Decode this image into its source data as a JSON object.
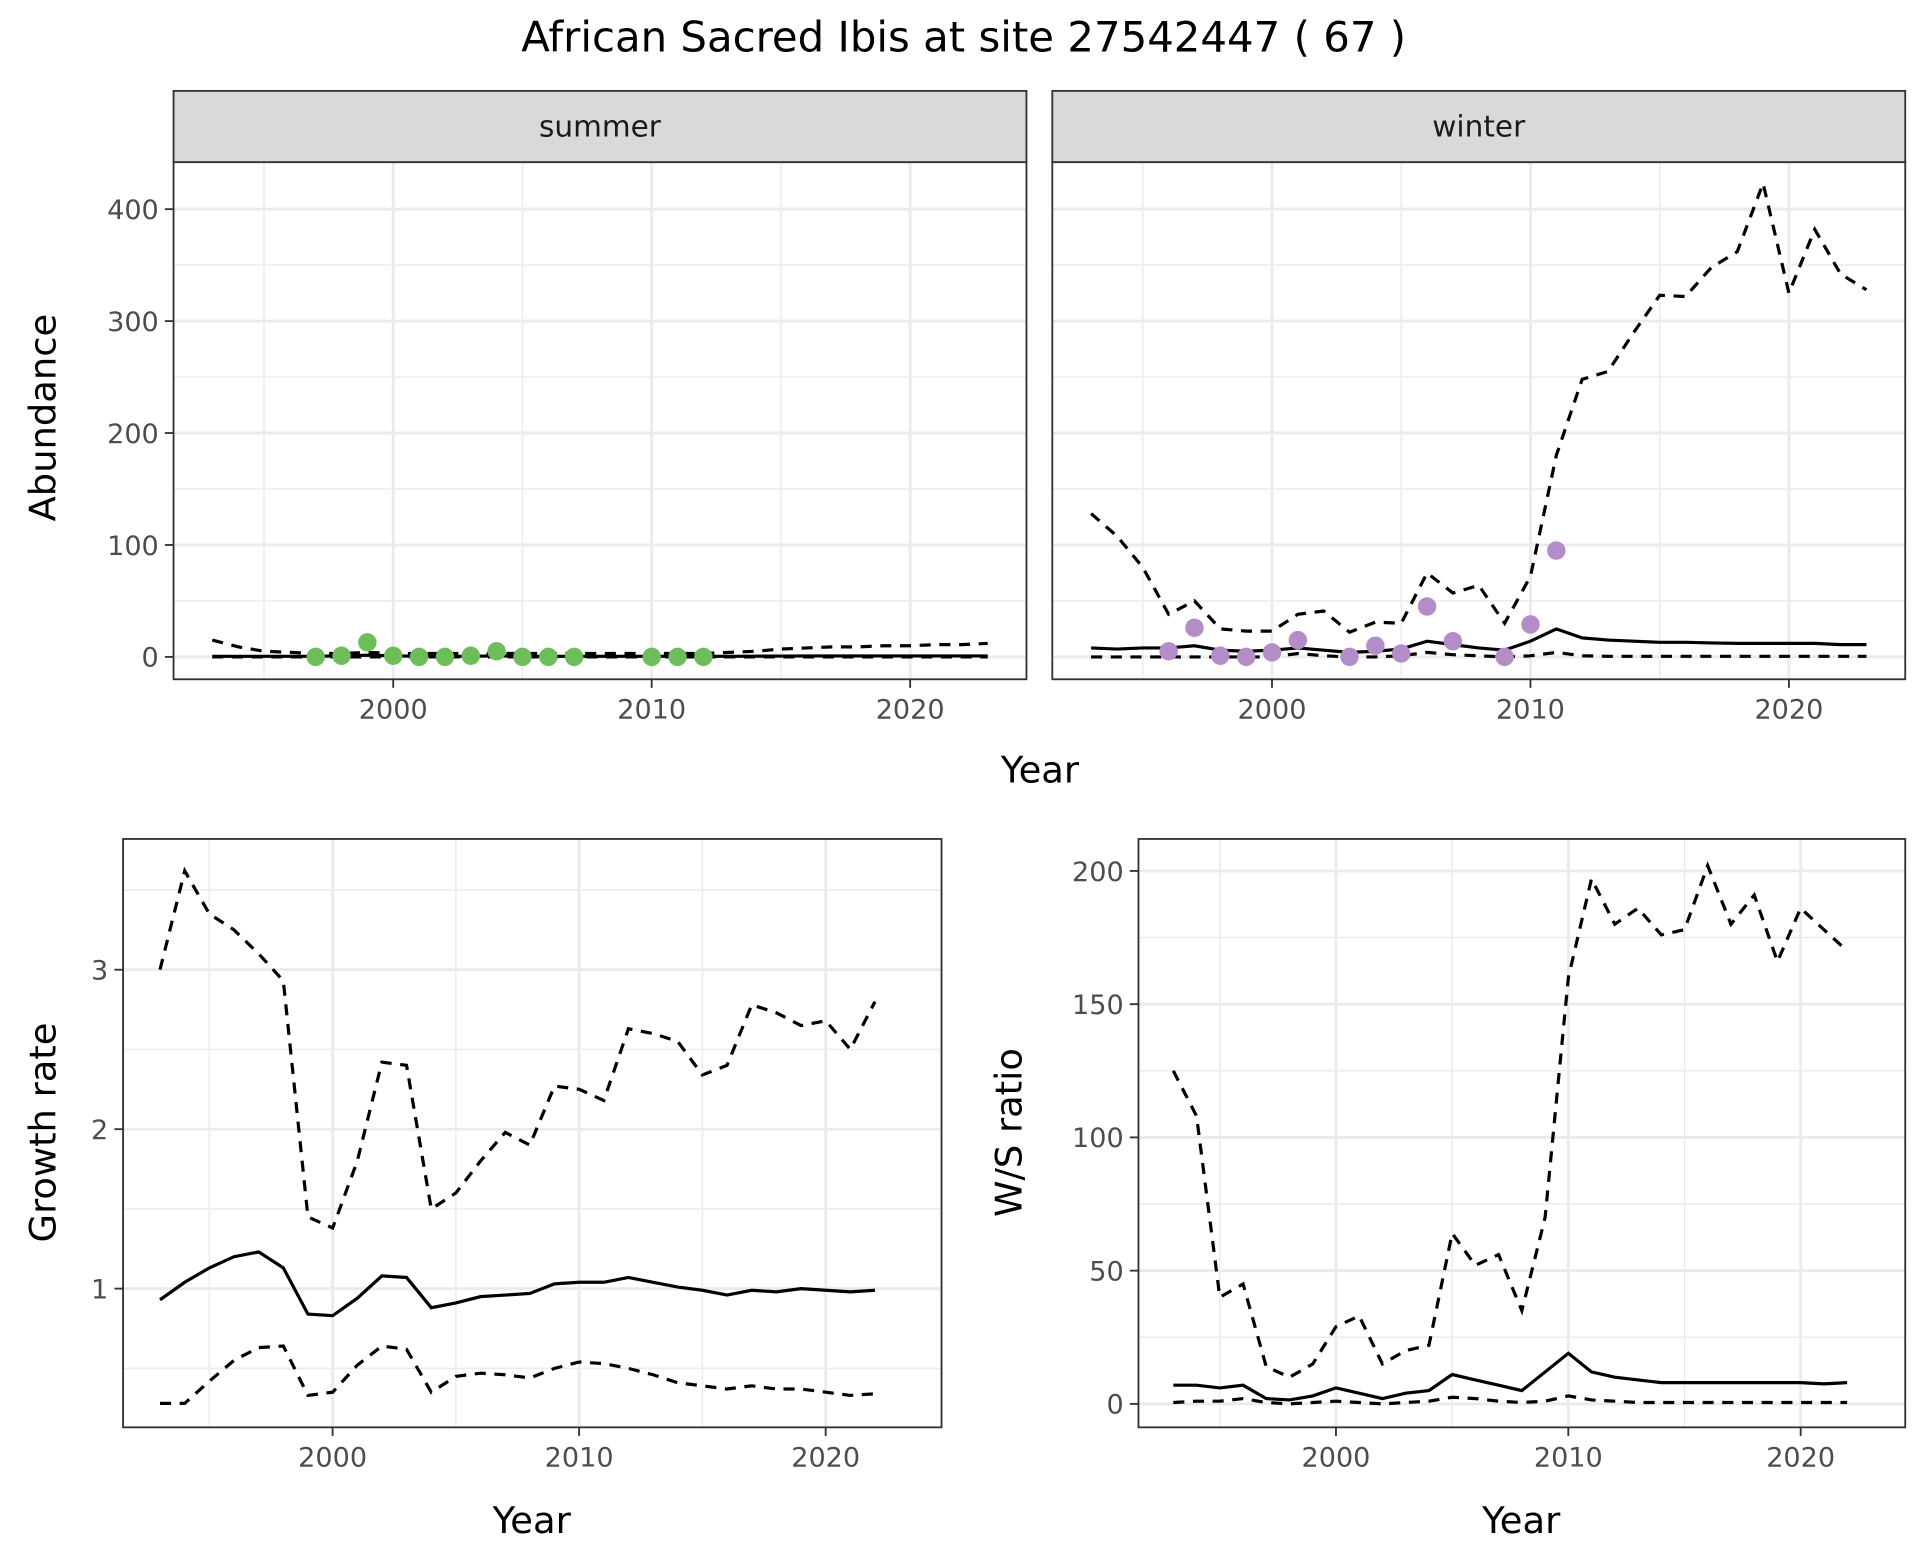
{
  "title": "African Sacred Ibis at site 27542447 ( 67 )",
  "colors": {
    "summer_points": "#6dbd5a",
    "winter_points": "#b48cc8",
    "lines": "#000000",
    "strip_bg": "#d9d9d9",
    "grid": "#ebebeb"
  },
  "chart_data": [
    {
      "type": "line",
      "id": "summer",
      "strip": "summer",
      "xlabel": "Year",
      "ylabel": "Abundance",
      "xlim": [
        1991.5,
        2024.5
      ],
      "ylim": [
        -20,
        442
      ],
      "xticks": [
        2000,
        2010,
        2020
      ],
      "yticks": [
        0,
        100,
        200,
        300,
        400
      ],
      "x": [
        1993,
        1994,
        1995,
        1996,
        1997,
        1998,
        1999,
        2000,
        2001,
        2002,
        2003,
        2004,
        2005,
        2006,
        2007,
        2008,
        2009,
        2010,
        2011,
        2012,
        2013,
        2014,
        2015,
        2016,
        2017,
        2018,
        2019,
        2020,
        2021,
        2022,
        2023
      ],
      "series": [
        {
          "name": "mean",
          "style": "solid",
          "values": [
            0.5,
            0.5,
            0.5,
            0.5,
            0.5,
            1,
            1.5,
            1,
            0.5,
            0.5,
            0.5,
            1,
            0.5,
            0.5,
            0.5,
            0.5,
            0.5,
            0.5,
            0.5,
            0.5,
            0.5,
            0.6,
            0.7,
            0.8,
            0.8,
            0.8,
            0.8,
            0.8,
            0.8,
            0.8,
            0.8
          ]
        },
        {
          "name": "upper",
          "style": "dashed",
          "values": [
            15,
            9,
            5,
            4,
            3,
            3,
            4,
            3,
            3,
            3,
            3,
            3,
            3,
            3,
            3,
            3,
            3,
            3,
            3,
            3,
            4,
            5,
            7,
            8,
            9,
            9,
            10,
            10,
            11,
            11,
            12
          ]
        },
        {
          "name": "lower",
          "style": "dashed",
          "values": [
            0,
            0,
            0,
            0,
            0,
            0,
            0,
            0,
            0,
            0,
            0,
            0,
            0,
            0,
            0,
            0,
            0,
            0,
            0,
            0,
            0,
            0,
            0,
            0,
            0,
            0,
            0,
            0,
            0,
            0,
            0
          ]
        }
      ],
      "points": {
        "x": [
          1997,
          1998,
          1999,
          2000,
          2001,
          2002,
          2003,
          2004,
          2005,
          2006,
          2007,
          2010,
          2011,
          2012
        ],
        "y": [
          0,
          1,
          13,
          1,
          0,
          0,
          1,
          5,
          0,
          0,
          0,
          0,
          0,
          0
        ]
      }
    },
    {
      "type": "line",
      "id": "winter",
      "strip": "winter",
      "xlabel": "Year",
      "ylabel": "Abundance",
      "xlim": [
        1991.5,
        2024.5
      ],
      "ylim": [
        -20,
        442
      ],
      "xticks": [
        2000,
        2010,
        2020
      ],
      "yticks": [
        0,
        100,
        200,
        300,
        400
      ],
      "x": [
        1993,
        1994,
        1995,
        1996,
        1997,
        1998,
        1999,
        2000,
        2001,
        2002,
        2003,
        2004,
        2005,
        2006,
        2007,
        2008,
        2009,
        2010,
        2011,
        2012,
        2013,
        2014,
        2015,
        2016,
        2017,
        2018,
        2019,
        2020,
        2021,
        2022,
        2023
      ],
      "series": [
        {
          "name": "mean",
          "style": "solid",
          "values": [
            8,
            7,
            8,
            8,
            10,
            6,
            5,
            6,
            8,
            6,
            4,
            5,
            7,
            14,
            11,
            8,
            6,
            14,
            25,
            17,
            15,
            14,
            13,
            13,
            12.5,
            12,
            12,
            12,
            12,
            11,
            11
          ]
        },
        {
          "name": "upper",
          "style": "dashed",
          "values": [
            128,
            108,
            80,
            38,
            50,
            25,
            23,
            23,
            38,
            41,
            22,
            31,
            30,
            75,
            57,
            64,
            30,
            72,
            180,
            248,
            255,
            290,
            323,
            322,
            348,
            362,
            423,
            325,
            382,
            342,
            328
          ]
        },
        {
          "name": "lower",
          "style": "dashed",
          "values": [
            0,
            0,
            0,
            0,
            0,
            0,
            0,
            0,
            3,
            1,
            0,
            0,
            1,
            4,
            2,
            1,
            0,
            1,
            4,
            1,
            0.5,
            0.5,
            0.5,
            0.5,
            0.5,
            0.5,
            0.5,
            0.5,
            0.5,
            0.5,
            0.5
          ]
        }
      ],
      "points": {
        "x": [
          1996,
          1997,
          1998,
          1999,
          2000,
          2001,
          2003,
          2004,
          2005,
          2006,
          2007,
          2009,
          2010,
          2011
        ],
        "y": [
          5,
          26,
          1,
          0,
          4,
          15,
          0,
          10,
          3,
          45,
          14,
          0,
          29,
          95
        ]
      }
    },
    {
      "type": "line",
      "id": "growth",
      "xlabel": "Year",
      "ylabel": "Growth rate",
      "xlim": [
        1991.5,
        2024.7
      ],
      "ylim": [
        0.13,
        3.82
      ],
      "xticks": [
        2000,
        2010,
        2020
      ],
      "yticks": [
        1,
        2,
        3
      ],
      "x": [
        1993,
        1994,
        1995,
        1996,
        1997,
        1998,
        1999,
        2000,
        2001,
        2002,
        2003,
        2004,
        2005,
        2006,
        2007,
        2008,
        2009,
        2010,
        2011,
        2012,
        2013,
        2014,
        2015,
        2016,
        2017,
        2018,
        2019,
        2020,
        2021,
        2022
      ],
      "series": [
        {
          "name": "mean",
          "style": "solid",
          "values": [
            0.93,
            1.04,
            1.13,
            1.2,
            1.23,
            1.13,
            0.84,
            0.83,
            0.94,
            1.08,
            1.07,
            0.88,
            0.91,
            0.95,
            0.96,
            0.97,
            1.03,
            1.04,
            1.04,
            1.07,
            1.04,
            1.01,
            0.99,
            0.96,
            0.99,
            0.98,
            1.0,
            0.99,
            0.98,
            0.99
          ]
        },
        {
          "name": "upper",
          "style": "dashed",
          "values": [
            3.0,
            3.62,
            3.35,
            3.25,
            3.1,
            2.93,
            1.45,
            1.38,
            1.8,
            2.42,
            2.4,
            1.5,
            1.6,
            1.8,
            1.98,
            1.9,
            2.27,
            2.25,
            2.18,
            2.63,
            2.6,
            2.55,
            2.34,
            2.4,
            2.78,
            2.73,
            2.65,
            2.68,
            2.5,
            2.8
          ]
        },
        {
          "name": "lower",
          "style": "dashed",
          "values": [
            0.28,
            0.28,
            0.42,
            0.55,
            0.63,
            0.64,
            0.33,
            0.35,
            0.52,
            0.64,
            0.62,
            0.35,
            0.45,
            0.47,
            0.46,
            0.44,
            0.5,
            0.54,
            0.53,
            0.5,
            0.46,
            0.41,
            0.39,
            0.37,
            0.39,
            0.37,
            0.37,
            0.35,
            0.33,
            0.34
          ]
        }
      ]
    },
    {
      "type": "line",
      "id": "ratio",
      "xlabel": "Year",
      "ylabel": "W/S ratio",
      "xlim": [
        1991.5,
        2024.5
      ],
      "ylim": [
        -8.8,
        212
      ],
      "xticks": [
        2000,
        2010,
        2020
      ],
      "yticks": [
        0,
        50,
        100,
        150,
        200
      ],
      "x": [
        1993,
        1994,
        1995,
        1996,
        1997,
        1998,
        1999,
        2000,
        2001,
        2002,
        2003,
        2004,
        2005,
        2006,
        2007,
        2008,
        2009,
        2010,
        2011,
        2012,
        2013,
        2014,
        2015,
        2016,
        2017,
        2018,
        2019,
        2020,
        2021,
        2022
      ],
      "series": [
        {
          "name": "mean",
          "style": "solid",
          "values": [
            7,
            7,
            6,
            7,
            2,
            1.5,
            3,
            6,
            4,
            2,
            4,
            5,
            11,
            9,
            7,
            5,
            12,
            19,
            12,
            10,
            9,
            8,
            8,
            8,
            8,
            8,
            8,
            8,
            7.5,
            8
          ]
        },
        {
          "name": "upper",
          "style": "dashed",
          "values": [
            125,
            108,
            40,
            45,
            14,
            10,
            15,
            29,
            33,
            15,
            20,
            22,
            64,
            52,
            56,
            35,
            70,
            160,
            197,
            180,
            186,
            176,
            178,
            202,
            180,
            191,
            166,
            186,
            178,
            170
          ]
        },
        {
          "name": "lower",
          "style": "dashed",
          "values": [
            0.5,
            1,
            1,
            2,
            0.5,
            0,
            0.5,
            1,
            0.5,
            0,
            0.5,
            1,
            2.5,
            2,
            1,
            0.5,
            1,
            3,
            1.5,
            1,
            0.5,
            0.5,
            0.5,
            0.5,
            0.5,
            0.5,
            0.5,
            0.5,
            0.5,
            0.5
          ]
        }
      ]
    }
  ]
}
